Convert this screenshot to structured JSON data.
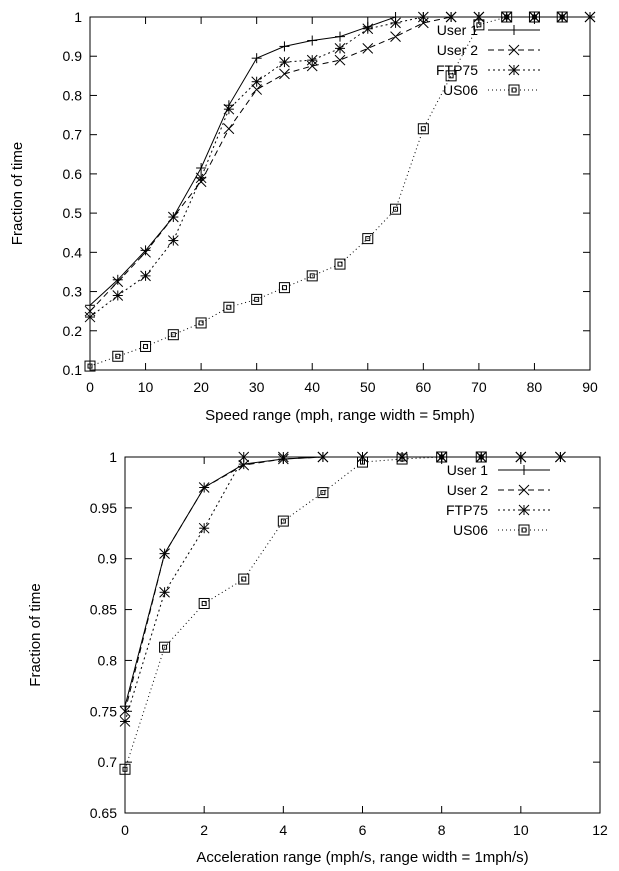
{
  "chart_data": [
    {
      "type": "line",
      "xlabel": "Speed range (mph, range width = 5mph)",
      "ylabel": "Fraction of time",
      "xlim": [
        0,
        90
      ],
      "ylim": [
        0.1,
        1
      ],
      "xticks": [
        0,
        10,
        20,
        30,
        40,
        50,
        60,
        70,
        80,
        90
      ],
      "yticks": [
        0.1,
        0.2,
        0.3,
        0.4,
        0.5,
        0.6,
        0.7,
        0.8,
        0.9,
        1
      ],
      "ytick_labels": [
        "0.1",
        "0.2",
        "0.3",
        "0.4",
        "0.5",
        "0.6",
        "0.7",
        "0.8",
        "0.9",
        "1"
      ],
      "grid": false,
      "legend_position": "top-right",
      "series": [
        {
          "name": "User 1",
          "marker": "plus",
          "dash": "",
          "x": [
            0,
            5,
            10,
            15,
            20,
            25,
            30,
            35,
            40,
            45,
            50,
            55,
            60,
            65,
            70,
            75,
            80,
            85,
            90
          ],
          "values": [
            0.265,
            0.33,
            0.405,
            0.49,
            0.615,
            0.775,
            0.895,
            0.925,
            0.94,
            0.95,
            0.975,
            1,
            1,
            1,
            1,
            1,
            1,
            1,
            1
          ]
        },
        {
          "name": "User 2",
          "marker": "cross",
          "dash": "6,4",
          "x": [
            0,
            5,
            10,
            15,
            20,
            25,
            30,
            35,
            40,
            45,
            50,
            55,
            60,
            65,
            70,
            75,
            80,
            85,
            90
          ],
          "values": [
            0.25,
            0.325,
            0.4,
            0.49,
            0.58,
            0.715,
            0.815,
            0.855,
            0.875,
            0.89,
            0.92,
            0.95,
            0.985,
            1,
            1,
            1,
            1,
            1,
            1
          ]
        },
        {
          "name": "FTP75",
          "marker": "star",
          "dash": "2,3",
          "x": [
            0,
            5,
            10,
            15,
            20,
            25,
            30,
            35,
            40,
            45,
            50,
            55,
            60,
            65,
            70,
            75,
            80,
            85,
            90
          ],
          "values": [
            0.235,
            0.29,
            0.34,
            0.43,
            0.59,
            0.765,
            0.835,
            0.885,
            0.89,
            0.92,
            0.97,
            0.985,
            1,
            1,
            1,
            1,
            1,
            1,
            1
          ]
        },
        {
          "name": "US06",
          "marker": "square",
          "dash": "1,3",
          "x": [
            0,
            5,
            10,
            15,
            20,
            25,
            30,
            35,
            40,
            45,
            50,
            55,
            60,
            65,
            70,
            75,
            80,
            85
          ],
          "values": [
            0.11,
            0.135,
            0.16,
            0.19,
            0.22,
            0.26,
            0.28,
            0.31,
            0.34,
            0.37,
            0.435,
            0.51,
            0.715,
            0.85,
            0.98,
            1,
            1,
            1
          ]
        }
      ]
    },
    {
      "type": "line",
      "xlabel": "Acceleration range (mph/s, range width = 1mph/s)",
      "ylabel": "Fraction of time",
      "xlim": [
        0,
        12
      ],
      "ylim": [
        0.65,
        1
      ],
      "xticks": [
        0,
        2,
        4,
        6,
        8,
        10,
        12
      ],
      "yticks": [
        0.65,
        0.7,
        0.75,
        0.8,
        0.85,
        0.9,
        0.95,
        1
      ],
      "ytick_labels": [
        "0.65",
        "0.7",
        "0.75",
        "0.8",
        "0.85",
        "0.9",
        "0.95",
        "1"
      ],
      "grid": false,
      "legend_position": "top-right",
      "series": [
        {
          "name": "User 1",
          "marker": "plus",
          "dash": "",
          "x": [
            0,
            1,
            2,
            3,
            4,
            5,
            6,
            7,
            8,
            9,
            10,
            11
          ],
          "values": [
            0.755,
            0.905,
            0.97,
            0.993,
            0.998,
            1,
            1,
            1,
            1,
            1,
            1,
            1
          ]
        },
        {
          "name": "User 2",
          "marker": "cross",
          "dash": "6,4",
          "x": [
            0,
            1,
            2,
            3,
            4,
            5,
            6,
            7,
            8,
            9,
            10,
            11
          ],
          "values": [
            0.75,
            0.905,
            0.97,
            0.992,
            0.998,
            1,
            1,
            1,
            1,
            1,
            1,
            1
          ]
        },
        {
          "name": "FTP75",
          "marker": "star",
          "dash": "2,3",
          "x": [
            0,
            1,
            2,
            3,
            4,
            5,
            6,
            7,
            8,
            9,
            10,
            11
          ],
          "values": [
            0.74,
            0.867,
            0.93,
            1,
            1,
            1,
            1,
            1,
            1,
            1,
            1,
            1
          ]
        },
        {
          "name": "US06",
          "marker": "square",
          "dash": "1,3",
          "x": [
            0,
            1,
            2,
            3,
            4,
            5,
            6,
            7,
            8,
            9
          ],
          "values": [
            0.693,
            0.813,
            0.856,
            0.88,
            0.937,
            0.965,
            0.995,
            0.998,
            1,
            1
          ]
        }
      ]
    }
  ]
}
